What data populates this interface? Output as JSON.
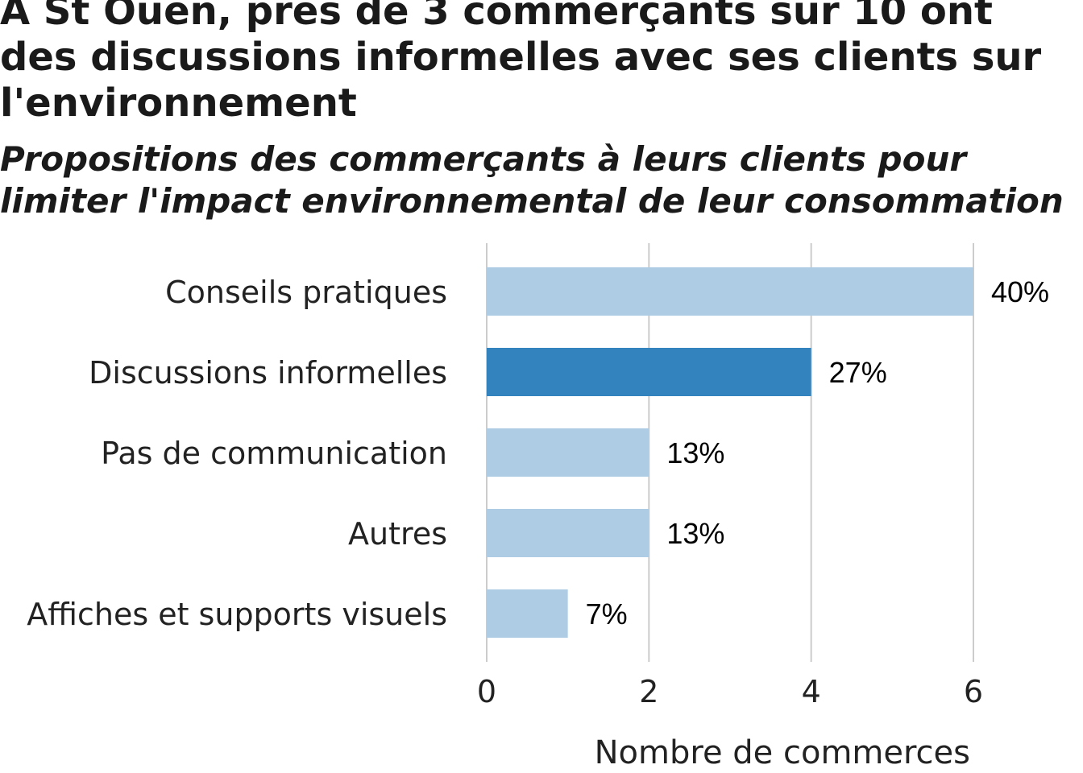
{
  "chart_data": {
    "type": "bar",
    "orientation": "horizontal",
    "title": "A St Ouen, près de 3 commerçants sur 10 ont des discussions informelles avec ses clients sur l'environnement",
    "subtitle": "Propositions des commerçants à leurs clients pour limiter l'impact environnemental de leur consommation",
    "categories": [
      "Conseils pratiques",
      "Discussions informelles",
      "Pas de communication",
      "Autres",
      "Affiches et supports visuels"
    ],
    "values": [
      6,
      4,
      2,
      2,
      1
    ],
    "data_labels": [
      "40%",
      "27%",
      "13%",
      "13%",
      "7%"
    ],
    "highlight": "Discussions informelles",
    "xlabel": "Nombre de commerces",
    "ylabel": "",
    "xlim": [
      0,
      6
    ],
    "xticks": [
      "0",
      "2",
      "4",
      "6"
    ],
    "grid": "vertical",
    "colors": {
      "bar": "#aecde5",
      "highlight": "#3283be",
      "grid": "#cccccc"
    }
  }
}
